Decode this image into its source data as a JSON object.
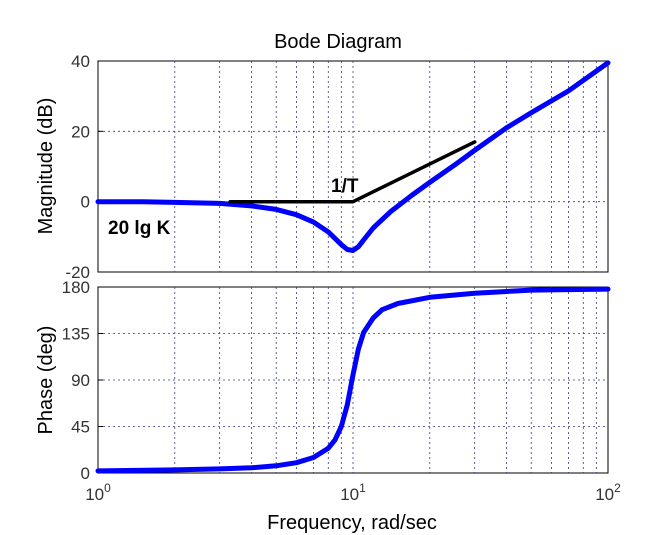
{
  "chart_data": [
    {
      "type": "line",
      "title": "Bode Diagram",
      "xlabel": "",
      "ylabel": "Magnitude (dB)",
      "xscale": "log",
      "xlim": [
        1,
        100
      ],
      "ylim": [
        -20,
        40
      ],
      "yticks": [
        "40",
        "20",
        "0",
        "-20"
      ],
      "grid": true,
      "series": [
        {
          "color": "#0000ff",
          "x": [
            1,
            1.5,
            2,
            3,
            4,
            5,
            6,
            7,
            8,
            9,
            9.5,
            10,
            10.5,
            11,
            12,
            14,
            17,
            20,
            25,
            30,
            40,
            50,
            70,
            100
          ],
          "y": [
            0,
            0,
            -0.2,
            -0.5,
            -1.2,
            -2.2,
            -3.7,
            -5.8,
            -8.6,
            -12.2,
            -13.6,
            -13.9,
            -12.8,
            -10.9,
            -7.5,
            -2.9,
            1.8,
            5.5,
            10.4,
            14.6,
            21.0,
            25.3,
            31.5,
            39.5
          ]
        },
        {
          "color": "#000000",
          "x": [
            3.3,
            10,
            30
          ],
          "y": [
            0,
            0,
            17
          ]
        }
      ],
      "annotations": [
        {
          "text": "1/T",
          "x": 8,
          "y": 3.6
        },
        {
          "text": "20 lg K",
          "x": 1.2,
          "y": -8.7
        }
      ]
    },
    {
      "type": "line",
      "xlabel": "Frequency, rad/sec",
      "ylabel": "Phase (deg)",
      "xscale": "log",
      "xlim": [
        1,
        100
      ],
      "ylim": [
        0,
        180
      ],
      "yticks": [
        "180",
        "135",
        "90",
        "45",
        "0"
      ],
      "xticks": [
        {
          "base": "10",
          "exp": "0"
        },
        {
          "base": "10",
          "exp": "1"
        },
        {
          "base": "10",
          "exp": "2"
        }
      ],
      "grid": true,
      "series": [
        {
          "color": "#0000ff",
          "x": [
            1,
            2,
            3,
            4,
            5,
            6,
            7,
            8,
            8.5,
            9,
            9.5,
            10,
            10.5,
            11,
            12,
            13,
            15,
            20,
            30,
            50,
            100
          ],
          "y": [
            2,
            3,
            4,
            5,
            7,
            10,
            15,
            24,
            32,
            45,
            66,
            95,
            120,
            136,
            150,
            158,
            164,
            170,
            174,
            177,
            178
          ]
        }
      ]
    }
  ]
}
